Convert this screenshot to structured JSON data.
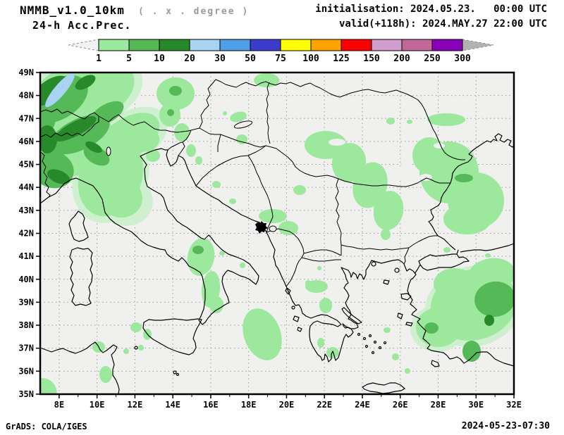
{
  "header": {
    "model": "NMMB_v1.0_10km",
    "grid_note": "( . x . degree )",
    "product": "24-h Acc.Prec.",
    "initialisation": "initialisation: 2024.05.23.   00:00 UTC",
    "valid": "valid(+118h): 2024.MAY.27 22:00 UTC"
  },
  "colorbar": {
    "levels": [
      "1",
      "5",
      "10",
      "20",
      "30",
      "50",
      "75",
      "100",
      "125",
      "150",
      "200",
      "250",
      "300"
    ],
    "segment_colors": [
      "#9ce89c",
      "#55b957",
      "#28892b",
      "#a8d4f2",
      "#4e9fe6",
      "#3a3ccd",
      "#ffff00",
      "#ffa300",
      "#fb0000",
      "#cf9ecf",
      "#c16799",
      "#8a00b8"
    ],
    "under_arrow_color": "#f2f2f2",
    "over_arrow_color": "#b2b2b2"
  },
  "map": {
    "x_tick_labels": [
      "8E",
      "10E",
      "12E",
      "14E",
      "16E",
      "18E",
      "20E",
      "22E",
      "24E",
      "26E",
      "28E",
      "30E",
      "32E"
    ],
    "y_tick_labels": [
      "49N",
      "48N",
      "47N",
      "46N",
      "45N",
      "44N",
      "43N",
      "42N",
      "41N",
      "40N",
      "39N",
      "38N",
      "37N",
      "36N",
      "35N"
    ],
    "background_color": "#f0f0ee",
    "precip_colors": {
      "trace": "#cff0cf",
      "light": "#9ce89c",
      "medium": "#55b957",
      "heavy": "#28892b",
      "very_heavy": "#a8d4f2"
    },
    "marker": {
      "symbol": "cross"
    }
  },
  "footer": {
    "left": "GrADS: COLA/IGES",
    "right": "2024-05-23-07:30"
  }
}
